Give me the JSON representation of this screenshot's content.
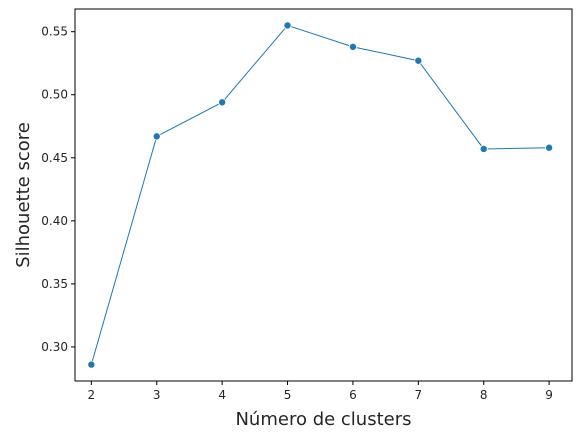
{
  "chart_data": {
    "type": "line",
    "title": "",
    "xlabel": "Número de clusters",
    "ylabel": "Silhouette score",
    "xlim": [
      1.75,
      9.35
    ],
    "ylim": [
      0.273,
      0.568
    ],
    "x_ticks": [
      2,
      3,
      4,
      5,
      6,
      7,
      8,
      9
    ],
    "x_tick_labels": [
      "2",
      "3",
      "4",
      "5",
      "6",
      "7",
      "8",
      "9"
    ],
    "y_ticks": [
      0.3,
      0.35,
      0.4,
      0.45,
      0.5,
      0.55
    ],
    "y_tick_labels": [
      "0.30",
      "0.35",
      "0.40",
      "0.45",
      "0.50",
      "0.55"
    ],
    "grid": false,
    "legend": "none",
    "color": "#1f77b4",
    "series": [
      {
        "x": [
          2,
          3,
          4,
          5,
          6,
          7,
          8,
          9
        ],
        "values": [
          0.286,
          0.467,
          0.494,
          0.555,
          0.538,
          0.527,
          0.457,
          0.458
        ]
      }
    ]
  }
}
